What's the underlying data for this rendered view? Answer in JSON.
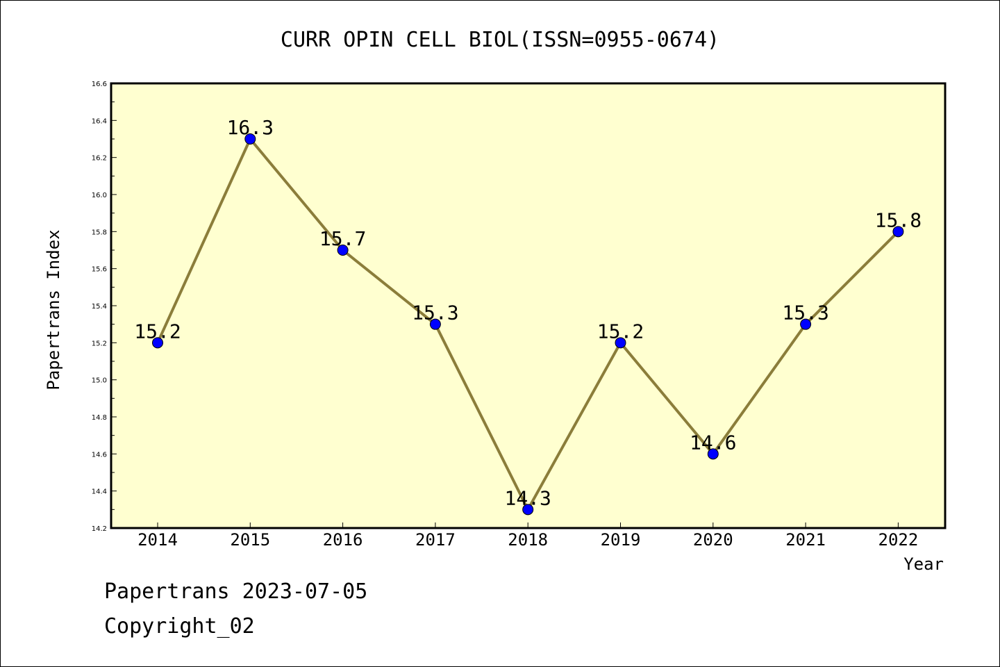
{
  "chart_data": {
    "type": "line",
    "title": "CURR OPIN CELL BIOL(ISSN=0955-0674)",
    "xlabel": "Year",
    "ylabel": "Papertrans Index",
    "categories": [
      "2014",
      "2015",
      "2016",
      "2017",
      "2018",
      "2019",
      "2020",
      "2021",
      "2022"
    ],
    "series": [
      {
        "values": [
          15.2,
          16.3,
          15.7,
          15.3,
          14.3,
          15.2,
          14.6,
          15.3,
          15.8
        ],
        "labels": [
          "15.2",
          "16.3",
          "15.7",
          "15.3",
          "14.3",
          "15.2",
          "14.6",
          "15.3",
          "15.8"
        ]
      }
    ],
    "ylim": [
      14.2,
      16.6
    ],
    "yticks": [
      "14.2",
      "14.4",
      "14.6",
      "14.8",
      "15.0",
      "15.2",
      "15.4",
      "15.6",
      "15.8",
      "16.0",
      "16.2",
      "16.4",
      "16.6"
    ],
    "grid": false,
    "colors": {
      "plot_background": "#ffffd0",
      "line": "#8b7d3a",
      "marker": "#0000ff"
    }
  },
  "footer": {
    "source": "Papertrans 2023-07-05",
    "copyright": "Copyright_02"
  }
}
